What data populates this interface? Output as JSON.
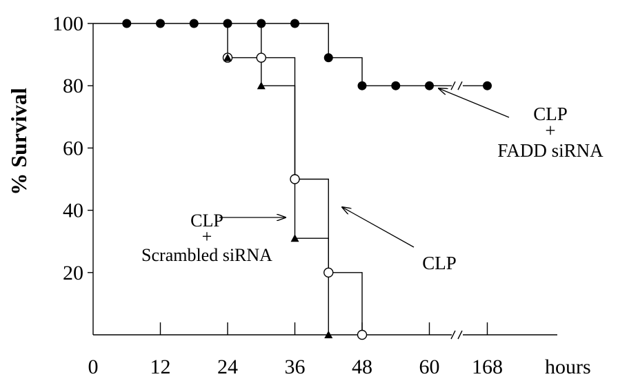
{
  "chart_data": {
    "type": "line",
    "step": true,
    "xlabel": "hours",
    "ylabel": "% Survival",
    "x_tick_labels": [
      "0",
      "12",
      "24",
      "36",
      "48",
      "60",
      "168"
    ],
    "x_tick_values": [
      0,
      12,
      24,
      36,
      48,
      60,
      168
    ],
    "y_tick_labels": [
      "100",
      "80",
      "60",
      "40",
      "20"
    ],
    "y_tick_values": [
      100,
      80,
      60,
      40,
      20
    ],
    "ylim": [
      0,
      100
    ],
    "axis_break": "between 60 and 168 hours",
    "grid": false,
    "series": [
      {
        "label_lines": [
          "CLP",
          "+",
          "FADD siRNA"
        ],
        "marker": "filled-circle",
        "x": [
          0,
          6,
          12,
          18,
          24,
          30,
          36,
          42,
          48,
          54,
          60,
          168
        ],
        "y": [
          100,
          100,
          100,
          100,
          100,
          100,
          100,
          89,
          80,
          80,
          80,
          80
        ]
      },
      {
        "label_lines": [
          "CLP"
        ],
        "marker": "open-circle",
        "x": [
          0,
          24,
          30,
          36,
          42,
          48
        ],
        "y": [
          100,
          89,
          89,
          50,
          20,
          0
        ]
      },
      {
        "label_lines": [
          "CLP",
          "+",
          "Scrambled siRNA"
        ],
        "marker": "filled-triangle",
        "x": [
          0,
          24,
          30,
          36,
          42
        ],
        "y": [
          100,
          89,
          80,
          31,
          0
        ]
      }
    ]
  }
}
